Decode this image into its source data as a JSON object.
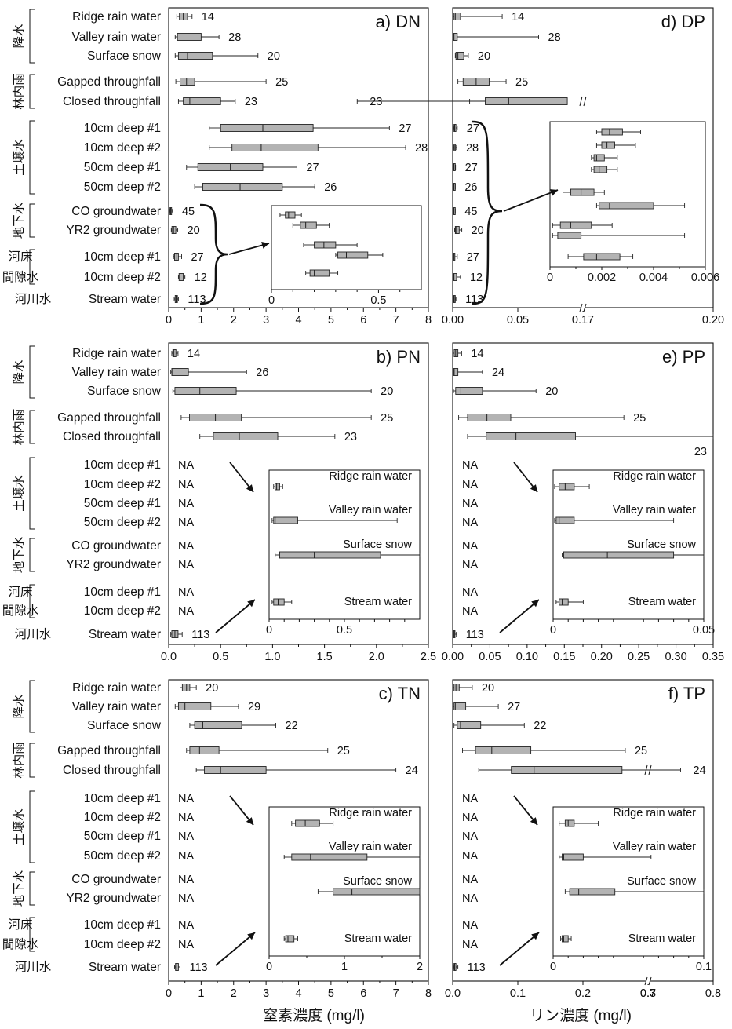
{
  "groups": [
    {
      "id": "precip",
      "label": "降水",
      "first": 0,
      "last": 2
    },
    {
      "id": "throughfall",
      "label": "林内雨",
      "first": 3,
      "last": 4
    },
    {
      "id": "soil",
      "label": "土壌水",
      "first": 5,
      "last": 8
    },
    {
      "id": "groundwater",
      "label": "地下水",
      "first": 9,
      "last": 10
    },
    {
      "id": "hyporheic",
      "label": "河床間隙水",
      "first": 11,
      "last": 12
    },
    {
      "id": "stream",
      "label": "河川水",
      "first": 13,
      "last": 13
    }
  ],
  "rows": [
    "Ridge rain water",
    "Valley rain water",
    "Surface snow",
    "Gapped throughfall",
    "Closed throughfall",
    "10cm deep #1",
    "10cm deep #2",
    "50cm deep #1",
    "50cm deep #2",
    "CO groundwater",
    "YR2 groundwater",
    "10cm deep #1",
    "10cm deep #2",
    "Stream water"
  ],
  "na_text": "NA",
  "xlabels": {
    "n": "窒素濃度 (mg/l)",
    "p": "リン濃度 (mg/l)"
  },
  "chart_data": [
    {
      "id": "a",
      "type": "boxplot",
      "title": "a) DN",
      "xlim": [
        0,
        8
      ],
      "xticks": [
        "0",
        "1",
        "2",
        "3",
        "4",
        "5",
        "6",
        "7",
        "8"
      ],
      "boxes": [
        {
          "row": 0,
          "min": 0.25,
          "q1": 0.33,
          "med": 0.45,
          "q3": 0.58,
          "max": 0.72,
          "n": "14"
        },
        {
          "row": 1,
          "min": 0.2,
          "q1": 0.27,
          "med": 0.35,
          "q3": 1.0,
          "max": 1.55,
          "n": "28"
        },
        {
          "row": 2,
          "min": 0.2,
          "q1": 0.3,
          "med": 0.58,
          "q3": 1.35,
          "max": 2.75,
          "n": "20"
        },
        {
          "row": 3,
          "min": 0.22,
          "q1": 0.35,
          "med": 0.55,
          "q3": 0.8,
          "max": 3.0,
          "n": "25"
        },
        {
          "row": 4,
          "min": 0.3,
          "q1": 0.45,
          "med": 0.65,
          "q3": 1.6,
          "max": 2.05,
          "n": "23"
        },
        {
          "row": 5,
          "min": 1.25,
          "q1": 1.6,
          "med": 2.9,
          "q3": 4.45,
          "max": 6.8,
          "n": "27"
        },
        {
          "row": 6,
          "min": 1.25,
          "q1": 1.95,
          "med": 2.85,
          "q3": 4.6,
          "max": 7.3,
          "n": "28"
        },
        {
          "row": 7,
          "min": 0.55,
          "q1": 0.9,
          "med": 1.9,
          "q3": 2.9,
          "max": 3.95,
          "n": "27"
        },
        {
          "row": 8,
          "min": 0.8,
          "q1": 1.05,
          "med": 2.2,
          "q3": 3.5,
          "max": 4.5,
          "n": "26"
        },
        {
          "row": 9,
          "min": 0.02,
          "q1": 0.04,
          "med": 0.06,
          "q3": 0.09,
          "max": 0.12,
          "n": "45"
        },
        {
          "row": 10,
          "min": 0.08,
          "q1": 0.1,
          "med": 0.15,
          "q3": 0.22,
          "max": 0.28,
          "n": "20"
        },
        {
          "row": 11,
          "min": 0.15,
          "q1": 0.18,
          "med": 0.25,
          "q3": 0.3,
          "max": 0.4,
          "n": "27"
        },
        {
          "row": 12,
          "min": 0.3,
          "q1": 0.32,
          "med": 0.35,
          "q3": 0.45,
          "max": 0.5,
          "n": "12"
        },
        {
          "row": 13,
          "min": 0.17,
          "q1": 0.2,
          "med": 0.23,
          "q3": 0.27,
          "max": 0.3,
          "n": "113"
        }
      ],
      "inset": {
        "xlim": [
          0,
          0.7
        ],
        "xticks": [
          "0",
          "0.5"
        ],
        "brace_rows": [
          9,
          13
        ],
        "boxes": [
          {
            "min": 0.04,
            "q1": 0.065,
            "med": 0.08,
            "q3": 0.11,
            "max": 0.14
          },
          {
            "min": 0.1,
            "q1": 0.135,
            "med": 0.16,
            "q3": 0.21,
            "max": 0.27
          },
          {
            "min": 0.15,
            "q1": 0.2,
            "med": 0.245,
            "q3": 0.3,
            "max": 0.4
          },
          {
            "min": 0.3,
            "q1": 0.31,
            "med": 0.35,
            "q3": 0.45,
            "max": 0.52
          },
          {
            "min": 0.16,
            "q1": 0.18,
            "med": 0.2,
            "q3": 0.27,
            "max": 0.31
          }
        ]
      }
    },
    {
      "id": "b",
      "type": "boxplot",
      "title": "b) PN",
      "xlim": [
        0,
        2.5
      ],
      "xticks": [
        "0.0",
        "0.5",
        "1.0",
        "1.5",
        "2.0",
        "2.5"
      ],
      "na_rows": [
        5,
        6,
        7,
        8,
        9,
        10,
        11,
        12
      ],
      "boxes": [
        {
          "row": 0,
          "min": 0.03,
          "q1": 0.04,
          "med": 0.05,
          "q3": 0.07,
          "max": 0.09,
          "n": "14"
        },
        {
          "row": 1,
          "min": 0.02,
          "q1": 0.03,
          "med": 0.04,
          "q3": 0.19,
          "max": 0.75,
          "n": "26"
        },
        {
          "row": 2,
          "min": 0.04,
          "q1": 0.06,
          "med": 0.3,
          "q3": 0.65,
          "max": 1.95,
          "n": "20"
        },
        {
          "row": 3,
          "min": 0.12,
          "q1": 0.2,
          "med": 0.45,
          "q3": 0.7,
          "max": 1.95,
          "n": "25"
        },
        {
          "row": 4,
          "min": 0.3,
          "q1": 0.43,
          "med": 0.68,
          "q3": 1.05,
          "max": 1.6,
          "n": "23"
        },
        {
          "row": 13,
          "min": 0.02,
          "q1": 0.03,
          "med": 0.06,
          "q3": 0.09,
          "max": 0.13,
          "n": "113"
        }
      ],
      "inset": {
        "xlim": [
          0,
          1.0
        ],
        "xticks": [
          "0",
          "0.5"
        ],
        "boxes": [
          {
            "label": "Ridge rain water",
            "min": 0.03,
            "q1": 0.04,
            "med": 0.05,
            "q3": 0.07,
            "max": 0.09
          },
          {
            "label": "Valley rain water",
            "min": 0.02,
            "q1": 0.03,
            "med": 0.04,
            "q3": 0.19,
            "max": 0.85
          },
          {
            "label": "Surface snow",
            "min": 0.04,
            "q1": 0.07,
            "med": 0.3,
            "q3": 0.74,
            "max": 1.0
          },
          {
            "label": "Stream water",
            "min": 0.02,
            "q1": 0.03,
            "med": 0.06,
            "q3": 0.1,
            "max": 0.15
          }
        ]
      }
    },
    {
      "id": "c",
      "type": "boxplot",
      "title": "c) TN",
      "xlim": [
        0,
        8
      ],
      "xticks": [
        "0",
        "1",
        "2",
        "3",
        "4",
        "5",
        "6",
        "7",
        "8"
      ],
      "na_rows": [
        5,
        6,
        7,
        8,
        9,
        10,
        11,
        12
      ],
      "boxes": [
        {
          "row": 0,
          "min": 0.35,
          "q1": 0.42,
          "med": 0.55,
          "q3": 0.65,
          "max": 0.85,
          "n": "20"
        },
        {
          "row": 1,
          "min": 0.2,
          "q1": 0.3,
          "med": 0.5,
          "q3": 1.3,
          "max": 2.15,
          "n": "29"
        },
        {
          "row": 2,
          "min": 0.65,
          "q1": 0.8,
          "med": 1.05,
          "q3": 2.25,
          "max": 3.3,
          "n": "22"
        },
        {
          "row": 3,
          "min": 0.55,
          "q1": 0.65,
          "med": 0.95,
          "q3": 1.55,
          "max": 4.9,
          "n": "25"
        },
        {
          "row": 4,
          "min": 0.85,
          "q1": 1.1,
          "med": 1.6,
          "q3": 3.0,
          "max": 7.0,
          "n": "24"
        },
        {
          "row": 13,
          "min": 0.18,
          "q1": 0.21,
          "med": 0.25,
          "q3": 0.3,
          "max": 0.35,
          "n": "113"
        }
      ],
      "inset": {
        "xlim": [
          0,
          2
        ],
        "xticks": [
          "0",
          "1",
          "2"
        ],
        "boxes": [
          {
            "label": "Ridge rain water",
            "min": 0.3,
            "q1": 0.35,
            "med": 0.48,
            "q3": 0.67,
            "max": 0.85
          },
          {
            "label": "Valley rain water",
            "min": 0.2,
            "q1": 0.3,
            "med": 0.55,
            "q3": 1.3,
            "max": 2.0
          },
          {
            "label": "Surface snow",
            "min": 0.65,
            "q1": 0.85,
            "med": 1.1,
            "q3": 2.0,
            "max": 2.0
          },
          {
            "label": "Stream water",
            "min": 0.2,
            "q1": 0.22,
            "med": 0.25,
            "q3": 0.33,
            "max": 0.38
          }
        ]
      }
    },
    {
      "id": "d",
      "type": "boxplot",
      "title": "d) DP",
      "xlim": [
        0,
        0.2
      ],
      "break": {
        "after": 0.05,
        "resume": 0.17
      },
      "xticks": [
        {
          "v": 0,
          "t": "0.00"
        },
        {
          "v": 0.05,
          "t": "0.05"
        },
        {
          "v": 0.17,
          "t": "0.17"
        },
        {
          "v": 0.2,
          "t": "0.20"
        }
      ],
      "boxes": [
        {
          "row": 0,
          "min": 0.0,
          "q1": 0.001,
          "med": 0.002,
          "q3": 0.006,
          "max": 0.038,
          "n": "14"
        },
        {
          "row": 1,
          "min": 0.0,
          "q1": 0.0005,
          "med": 0.001,
          "q3": 0.0035,
          "max": 0.066,
          "n": "28"
        },
        {
          "row": 2,
          "min": 0.002,
          "q1": 0.0025,
          "med": 0.004,
          "q3": 0.0085,
          "max": 0.012,
          "n": "20"
        },
        {
          "row": 3,
          "min": 0.004,
          "q1": 0.008,
          "med": 0.018,
          "q3": 0.028,
          "max": 0.041,
          "n": "25"
        },
        {
          "row": 4,
          "min": 0.013,
          "q1": 0.025,
          "med": 0.043,
          "q3": 0.088,
          "max": 0.118,
          "n": "23"
        },
        {
          "row": 5,
          "min": 0.0005,
          "q1": 0.001,
          "med": 0.0015,
          "q3": 0.0025,
          "max": 0.0035,
          "n": "27"
        },
        {
          "row": 6,
          "min": 0.0005,
          "q1": 0.001,
          "med": 0.0013,
          "q3": 0.002,
          "max": 0.003,
          "n": "28"
        },
        {
          "row": 7,
          "min": 0.0005,
          "q1": 0.0008,
          "med": 0.001,
          "q3": 0.0017,
          "max": 0.0022,
          "n": "27"
        },
        {
          "row": 8,
          "min": 0.0005,
          "q1": 0.0008,
          "med": 0.001,
          "q3": 0.0015,
          "max": 0.002,
          "n": "26"
        },
        {
          "row": 9,
          "min": 0.0005,
          "q1": 0.0008,
          "med": 0.001,
          "q3": 0.0015,
          "max": 0.002,
          "n": "45"
        },
        {
          "row": 10,
          "min": 0.0015,
          "q1": 0.002,
          "med": 0.0025,
          "q3": 0.005,
          "max": 0.007,
          "n": "20"
        },
        {
          "row": 11,
          "min": 0.0003,
          "q1": 0.0005,
          "med": 0.001,
          "q3": 0.0017,
          "max": 0.0035,
          "n": "27"
        },
        {
          "row": 12,
          "min": 0.0005,
          "q1": 0.0007,
          "med": 0.001,
          "q3": 0.003,
          "max": 0.006,
          "n": "12"
        },
        {
          "row": 13,
          "min": 0.0005,
          "q1": 0.0008,
          "med": 0.0012,
          "q3": 0.0018,
          "max": 0.0025,
          "n": "113"
        }
      ],
      "inset": {
        "xlim": [
          0,
          0.006
        ],
        "xticks": [
          "0",
          "0.002",
          "0.004",
          "0.006"
        ],
        "boxes": [
          {
            "min": 0.0018,
            "q1": 0.002,
            "med": 0.0023,
            "q3": 0.0028,
            "max": 0.0035
          },
          {
            "min": 0.0018,
            "q1": 0.002,
            "med": 0.0022,
            "q3": 0.0025,
            "max": 0.0033
          },
          {
            "min": 0.0016,
            "q1": 0.0017,
            "med": 0.0018,
            "q3": 0.0021,
            "max": 0.0026
          },
          {
            "min": 0.0016,
            "q1": 0.0017,
            "med": 0.0019,
            "q3": 0.0022,
            "max": 0.0026
          },
          {
            "min": 0.0005,
            "q1": 0.0008,
            "med": 0.0012,
            "q3": 0.0017,
            "max": 0.0021
          },
          {
            "min": 0.0018,
            "q1": 0.0019,
            "med": 0.0023,
            "q3": 0.004,
            "max": 0.0052
          },
          {
            "min": 0.0001,
            "q1": 0.0004,
            "med": 0.0008,
            "q3": 0.0016,
            "max": 0.0024
          },
          {
            "min": 0.0001,
            "q1": 0.0003,
            "med": 0.0005,
            "q3": 0.0012,
            "max": 0.0052
          },
          {
            "min": 0.0007,
            "q1": 0.0013,
            "med": 0.0018,
            "q3": 0.0027,
            "max": 0.0032
          }
        ]
      }
    },
    {
      "id": "e",
      "type": "boxplot",
      "title": "e) PP",
      "xlim": [
        0,
        0.35
      ],
      "xticks": [
        "0.00",
        "0.05",
        "0.10",
        "0.15",
        "0.20",
        "0.25",
        "0.30",
        "0.35"
      ],
      "na_rows": [
        5,
        6,
        7,
        8,
        9,
        10,
        11,
        12
      ],
      "boxes": [
        {
          "row": 0,
          "min": 0.0005,
          "q1": 0.002,
          "med": 0.004,
          "q3": 0.007,
          "max": 0.012,
          "n": "14"
        },
        {
          "row": 1,
          "min": 0.0005,
          "q1": 0.001,
          "med": 0.002,
          "q3": 0.007,
          "max": 0.04,
          "n": "24"
        },
        {
          "row": 2,
          "min": 0.001,
          "q1": 0.004,
          "med": 0.011,
          "q3": 0.04,
          "max": 0.112,
          "n": "20"
        },
        {
          "row": 3,
          "min": 0.008,
          "q1": 0.02,
          "med": 0.046,
          "q3": 0.078,
          "max": 0.23,
          "n": "25"
        },
        {
          "row": 4,
          "min": 0.02,
          "q1": 0.045,
          "med": 0.085,
          "q3": 0.165,
          "max": 0.35,
          "n": "23"
        },
        {
          "row": 13,
          "min": 0.0005,
          "q1": 0.001,
          "med": 0.002,
          "q3": 0.003,
          "max": 0.005,
          "n": "113"
        }
      ],
      "inset": {
        "xlim": [
          0,
          0.05
        ],
        "xticks": [
          "0",
          "0.05"
        ],
        "boxes": [
          {
            "label": "Ridge rain water",
            "min": 0.0005,
            "q1": 0.002,
            "med": 0.004,
            "q3": 0.007,
            "max": 0.012
          },
          {
            "label": "Valley rain water",
            "min": 0.0005,
            "q1": 0.001,
            "med": 0.002,
            "q3": 0.007,
            "max": 0.04
          },
          {
            "label": "Surface snow",
            "min": 0.003,
            "q1": 0.0035,
            "med": 0.018,
            "q3": 0.04,
            "max": 0.05
          },
          {
            "label": "Stream water",
            "min": 0.001,
            "q1": 0.002,
            "med": 0.003,
            "q3": 0.005,
            "max": 0.01
          }
        ]
      }
    },
    {
      "id": "f",
      "type": "boxplot",
      "title": "f) TP",
      "xlim": [
        0,
        0.8
      ],
      "break": {
        "after": 0.3,
        "resume": 0.7
      },
      "xticks": [
        {
          "v": 0,
          "t": "0.0"
        },
        {
          "v": 0.1,
          "t": "0.1"
        },
        {
          "v": 0.2,
          "t": "0.2"
        },
        {
          "v": 0.3,
          "t": "0.3"
        },
        {
          "v": 0.7,
          "t": "0.7"
        },
        {
          "v": 0.8,
          "t": "0.8"
        }
      ],
      "na_rows": [
        5,
        6,
        7,
        8,
        9,
        10,
        11,
        12
      ],
      "boxes": [
        {
          "row": 0,
          "min": 0.0,
          "q1": 0.002,
          "med": 0.005,
          "q3": 0.01,
          "max": 0.03,
          "n": "20"
        },
        {
          "row": 1,
          "min": 0.0,
          "q1": 0.002,
          "med": 0.004,
          "q3": 0.02,
          "max": 0.07,
          "n": "27"
        },
        {
          "row": 2,
          "min": 0.002,
          "q1": 0.007,
          "med": 0.012,
          "q3": 0.043,
          "max": 0.11,
          "n": "22"
        },
        {
          "row": 3,
          "min": 0.015,
          "q1": 0.035,
          "med": 0.06,
          "q3": 0.12,
          "max": 0.265,
          "n": "25"
        },
        {
          "row": 4,
          "min": 0.04,
          "q1": 0.09,
          "med": 0.125,
          "q3": 0.26,
          "max": 0.75,
          "n": "24"
        },
        {
          "row": 13,
          "min": 0.001,
          "q1": 0.002,
          "med": 0.003,
          "q3": 0.005,
          "max": 0.008,
          "n": "113"
        }
      ],
      "inset": {
        "xlim": [
          0,
          0.1
        ],
        "xticks": [
          "0",
          "0.1"
        ],
        "boxes": [
          {
            "label": "Ridge rain water",
            "min": 0.004,
            "q1": 0.008,
            "med": 0.01,
            "q3": 0.014,
            "max": 0.03
          },
          {
            "label": "Valley rain water",
            "min": 0.004,
            "q1": 0.006,
            "med": 0.007,
            "q3": 0.02,
            "max": 0.065
          },
          {
            "label": "Surface snow",
            "min": 0.008,
            "q1": 0.011,
            "med": 0.017,
            "q3": 0.041,
            "max": 0.1
          },
          {
            "label": "Stream water",
            "min": 0.005,
            "q1": 0.006,
            "med": 0.007,
            "q3": 0.01,
            "max": 0.012
          }
        ]
      }
    }
  ]
}
